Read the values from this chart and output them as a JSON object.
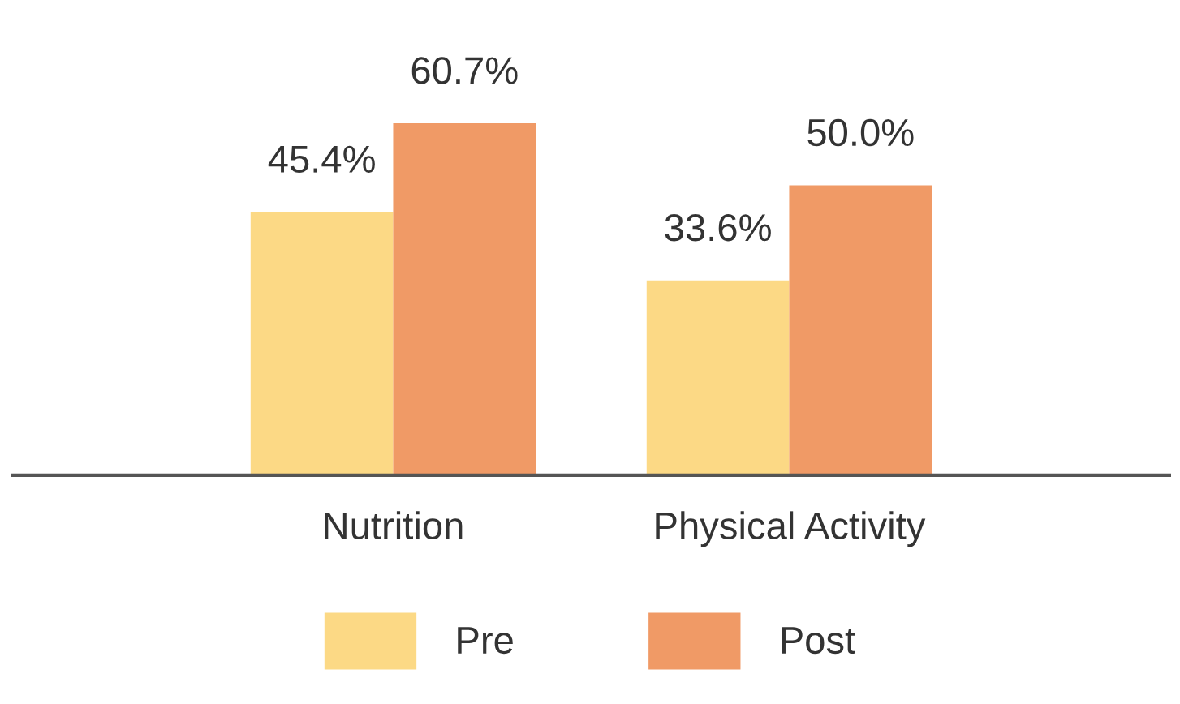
{
  "chart_data": {
    "type": "bar",
    "categories": [
      "Nutrition",
      "Physical Activity"
    ],
    "series": [
      {
        "name": "Pre",
        "color": "#fcd985",
        "values": [
          45.4,
          33.6
        ],
        "value_labels": [
          "45.4%",
          "33.6%"
        ]
      },
      {
        "name": "Post",
        "color": "#f09a66",
        "values": [
          60.7,
          50.0
        ],
        "value_labels": [
          "60.7%",
          "50.0%"
        ]
      }
    ],
    "legend": "bottom",
    "grid": false
  }
}
